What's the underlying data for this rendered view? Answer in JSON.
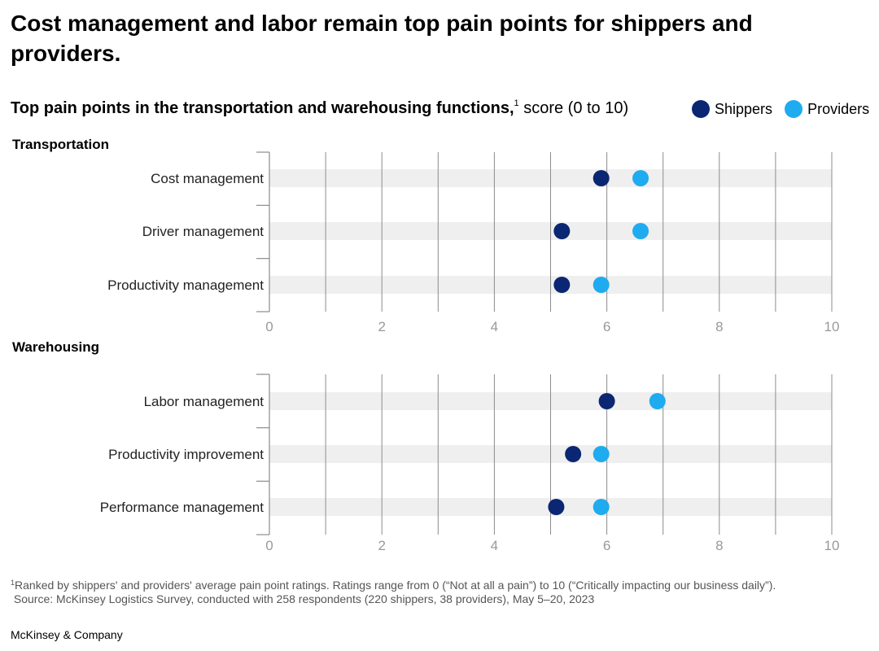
{
  "title": "Cost management and labor remain top pain points for shippers and providers.",
  "subtitle": {
    "bold": "Top pain points in the transportation and warehousing functions,",
    "footnote_marker": "1",
    "rest": " score (0 to 10)"
  },
  "colors": {
    "shippers": "#0b2672",
    "providers": "#1fabef",
    "band": "#efefef",
    "grid": "#8c8c8c",
    "tick": "#999999"
  },
  "legend": [
    {
      "name": "Shippers",
      "color": "#0b2672"
    },
    {
      "name": "Providers",
      "color": "#1fabef"
    }
  ],
  "chart_data": [
    {
      "type": "dot",
      "panel": "Transportation",
      "categories": [
        "Cost management",
        "Driver management",
        "Productivity management"
      ],
      "series": [
        {
          "name": "Shippers",
          "values": [
            5.9,
            5.2,
            5.2
          ]
        },
        {
          "name": "Providers",
          "values": [
            6.6,
            6.6,
            5.9
          ]
        }
      ],
      "xlim": [
        0,
        10
      ],
      "xticks": [
        "0",
        "2",
        "4",
        "6",
        "8",
        "10"
      ],
      "grid": true
    },
    {
      "type": "dot",
      "panel": "Warehousing",
      "categories": [
        "Labor management",
        "Productivity improvement",
        "Performance management"
      ],
      "series": [
        {
          "name": "Shippers",
          "values": [
            6.0,
            5.4,
            5.1
          ]
        },
        {
          "name": "Providers",
          "values": [
            6.9,
            5.9,
            5.9
          ]
        }
      ],
      "xlim": [
        0,
        10
      ],
      "xticks": [
        "0",
        "2",
        "4",
        "6",
        "8",
        "10"
      ],
      "grid": true
    }
  ],
  "footnote": {
    "marker": "1",
    "line1": "Ranked by shippers' and providers' average pain point ratings. Ratings range from 0 (“Not at all a pain”) to 10 (“Critically impacting our business daily”).",
    "line2": "Source: McKinsey Logistics Survey, conducted with 258 respondents (220 shippers, 38 providers), May 5–20, 2023"
  },
  "brand": "McKinsey & Company"
}
